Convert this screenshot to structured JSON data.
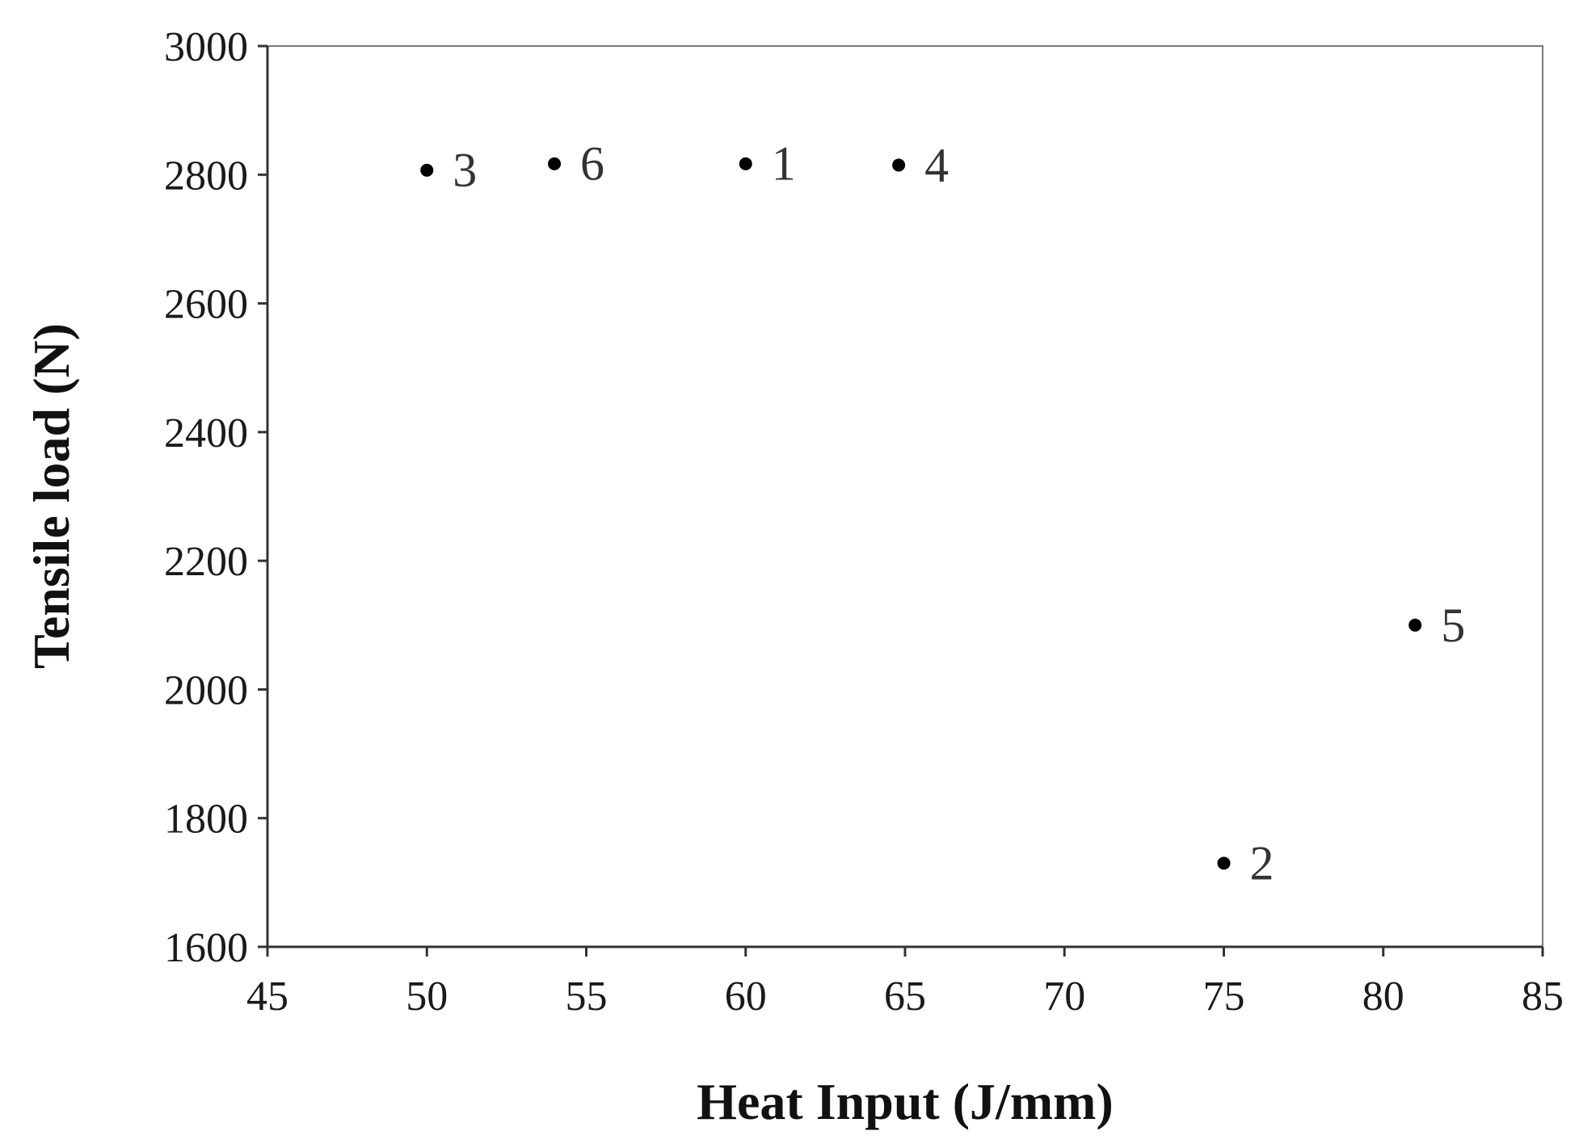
{
  "chart_data": {
    "type": "scatter",
    "title": "",
    "xlabel": "Heat Input (J/mm)",
    "ylabel": "Tensile load (N)",
    "xlim": [
      45,
      85
    ],
    "ylim": [
      1600,
      3000
    ],
    "xticks": [
      45,
      50,
      55,
      60,
      65,
      70,
      75,
      80,
      85
    ],
    "yticks": [
      1600,
      1800,
      2000,
      2200,
      2400,
      2600,
      2800,
      3000
    ],
    "grid": false,
    "points": [
      {
        "label": "1",
        "x": 60,
        "y": 2817
      },
      {
        "label": "2",
        "x": 75,
        "y": 1730
      },
      {
        "label": "3",
        "x": 50,
        "y": 2807
      },
      {
        "label": "4",
        "x": 64.8,
        "y": 2815
      },
      {
        "label": "5",
        "x": 81,
        "y": 2100
      },
      {
        "label": "6",
        "x": 54,
        "y": 2817
      }
    ],
    "colors": {
      "marker": "#000000",
      "axis": "#333333",
      "frame": "#777777"
    }
  }
}
